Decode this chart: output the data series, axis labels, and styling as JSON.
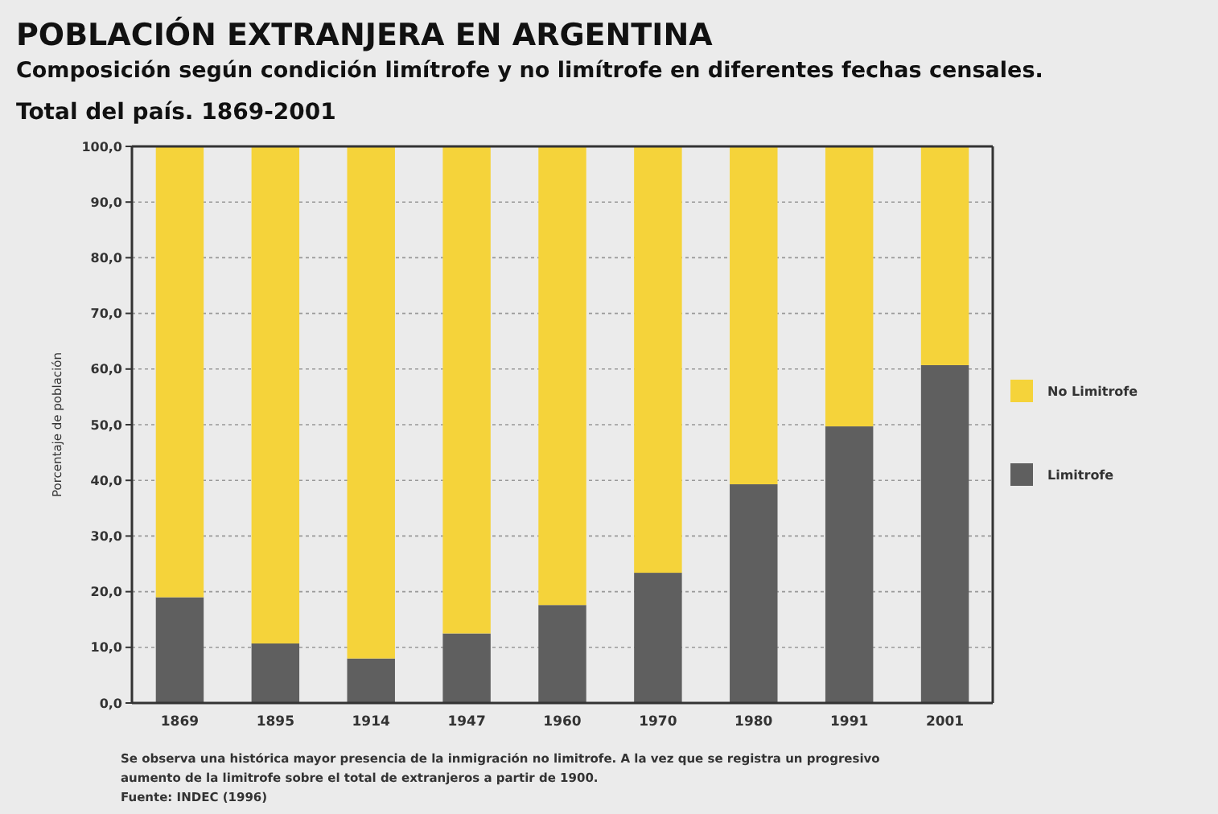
{
  "chart_data": {
    "type": "bar",
    "stacked": true,
    "title": "POBLACIÓN EXTRANJERA EN ARGENTINA",
    "subtitle": "Composición según condición limítrofe y no limítrofe en diferentes fechas censales.\nTotal del país. 1869-2001",
    "ylabel": "Porcentaje de población",
    "categories": [
      "1869",
      "1895",
      "1914",
      "1947",
      "1960",
      "1970",
      "1980",
      "1991",
      "2001"
    ],
    "series": [
      {
        "name": "Limitrofe",
        "color": "#5f5f5f",
        "values": [
          19.0,
          10.7,
          8.0,
          12.5,
          17.6,
          23.4,
          39.3,
          49.7,
          60.7
        ]
      },
      {
        "name": "No Limitrofe",
        "color": "#f5d33a",
        "values": [
          81.0,
          89.3,
          92.0,
          87.5,
          82.4,
          76.6,
          60.7,
          50.3,
          39.3
        ]
      }
    ],
    "ylim": [
      0,
      100
    ],
    "yticks": [
      {
        "value": 0,
        "label": "0,0"
      },
      {
        "value": 10,
        "label": "10,0"
      },
      {
        "value": 20,
        "label": "20,0"
      },
      {
        "value": 30,
        "label": "30,0"
      },
      {
        "value": 40,
        "label": "40,0"
      },
      {
        "value": 50,
        "label": "50,0"
      },
      {
        "value": 60,
        "label": "60,0"
      },
      {
        "value": 70,
        "label": "70,0"
      },
      {
        "value": 80,
        "label": "80,0"
      },
      {
        "value": 90,
        "label": "90,0"
      },
      {
        "value": 100,
        "label": "100,0"
      }
    ],
    "grid": "y",
    "legend": "right",
    "annotations": [
      "Se observa una histórica mayor presencia de la inmigración no limitrofe. A la vez que se registra un progresivo aumento  de la  limitrofe sobre el total de extranjeros a partir de 1900.",
      "Fuente: INDEC (1996)"
    ]
  }
}
